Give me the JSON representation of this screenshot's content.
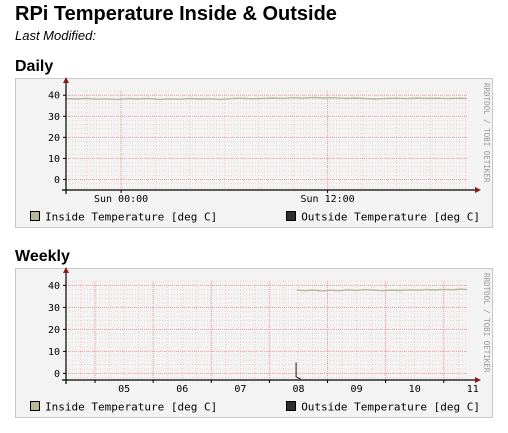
{
  "page": {
    "title": "RPi Temperature Inside & Outside",
    "subtitle": "Last Modified:"
  },
  "colors": {
    "inside": "#b8b89a",
    "outside": "#2e2e2e",
    "grid": "#f0a0a0",
    "axis": "#000000",
    "arrow": "#8b1a1a",
    "background": "#f3f3f3"
  },
  "chart_data": [
    {
      "id": "daily",
      "heading": "Daily",
      "type": "line",
      "x_unit": "hours",
      "x_range": [
        -3.2,
        20.1
      ],
      "xticks": [
        {
          "label": "Sun 00:00",
          "value": 0
        },
        {
          "label": "Sun 12:00",
          "value": 12
        }
      ],
      "x_minor_grid_step": 2,
      "ylim": [
        -5,
        42
      ],
      "yticks": [
        0,
        10,
        20,
        30,
        40
      ],
      "y_minor_grid_step": 2,
      "watermark": "RRDTOOL / TOBI OETIKER",
      "series": [
        {
          "name": "Inside Temperature [deg C]",
          "color_key": "inside",
          "points": [
            [
              -3.2,
              38.4
            ],
            [
              -2.6,
              38.2
            ],
            [
              -2.0,
              38.5
            ],
            [
              -1.4,
              38.1
            ],
            [
              -0.8,
              38.3
            ],
            [
              -0.2,
              38.0
            ],
            [
              0.4,
              38.4
            ],
            [
              1.0,
              38.2
            ],
            [
              1.6,
              38.5
            ],
            [
              2.2,
              38.0
            ],
            [
              2.8,
              38.3
            ],
            [
              3.4,
              38.1
            ],
            [
              4.0,
              38.4
            ],
            [
              4.6,
              38.2
            ],
            [
              5.2,
              38.3
            ],
            [
              5.8,
              38.0
            ],
            [
              6.4,
              38.4
            ],
            [
              7.0,
              38.6
            ],
            [
              7.6,
              38.3
            ],
            [
              8.2,
              38.5
            ],
            [
              8.8,
              38.7
            ],
            [
              9.4,
              38.5
            ],
            [
              10.0,
              38.8
            ],
            [
              10.6,
              38.6
            ],
            [
              11.2,
              38.9
            ],
            [
              11.8,
              38.7
            ],
            [
              12.4,
              38.8
            ],
            [
              13.0,
              38.5
            ],
            [
              13.6,
              38.7
            ],
            [
              14.2,
              38.4
            ],
            [
              14.8,
              38.2
            ],
            [
              15.4,
              38.5
            ],
            [
              16.0,
              38.6
            ],
            [
              16.6,
              38.4
            ],
            [
              17.2,
              38.7
            ],
            [
              17.8,
              38.5
            ],
            [
              18.4,
              38.6
            ],
            [
              19.0,
              38.4
            ],
            [
              19.6,
              38.6
            ],
            [
              20.1,
              38.5
            ]
          ]
        },
        {
          "name": "Outside Temperature [deg C]",
          "color_key": "outside",
          "points": []
        }
      ]
    },
    {
      "id": "weekly",
      "heading": "Weekly",
      "type": "line",
      "x_unit": "days",
      "x_range": [
        4.5,
        11.4
      ],
      "xticks": [
        {
          "label": "05",
          "value": 5
        },
        {
          "label": "06",
          "value": 6
        },
        {
          "label": "07",
          "value": 7
        },
        {
          "label": "08",
          "value": 8
        },
        {
          "label": "09",
          "value": 9
        },
        {
          "label": "10",
          "value": 10
        },
        {
          "label": "11",
          "value": 11
        }
      ],
      "x_label_offset": 0.5,
      "x_minor_grid_step": 0.25,
      "ylim": [
        -3,
        42
      ],
      "yticks": [
        0,
        10,
        20,
        30,
        40
      ],
      "y_minor_grid_step": 2,
      "watermark": "RRDTOOL / TOBI OETIKER",
      "series": [
        {
          "name": "Inside Temperature [deg C]",
          "color_key": "inside",
          "points": [
            [
              8.47,
              38.0
            ],
            [
              8.6,
              37.6
            ],
            [
              8.75,
              37.9
            ],
            [
              8.9,
              37.5
            ],
            [
              9.05,
              37.8
            ],
            [
              9.2,
              37.6
            ],
            [
              9.35,
              38.0
            ],
            [
              9.5,
              37.7
            ],
            [
              9.65,
              38.1
            ],
            [
              9.8,
              37.8
            ],
            [
              9.95,
              37.6
            ],
            [
              10.1,
              37.9
            ],
            [
              10.25,
              37.7
            ],
            [
              10.4,
              38.0
            ],
            [
              10.55,
              37.8
            ],
            [
              10.7,
              38.1
            ],
            [
              10.85,
              37.9
            ],
            [
              11.0,
              38.2
            ],
            [
              11.15,
              38.0
            ],
            [
              11.3,
              38.3
            ],
            [
              11.4,
              38.1
            ]
          ]
        },
        {
          "name": "Outside Temperature [deg C]",
          "color_key": "outside",
          "points": [
            [
              8.46,
              5.0
            ],
            [
              8.46,
              -1.5
            ],
            [
              8.5,
              -2.2
            ],
            [
              8.54,
              -2.5
            ]
          ]
        }
      ]
    }
  ]
}
